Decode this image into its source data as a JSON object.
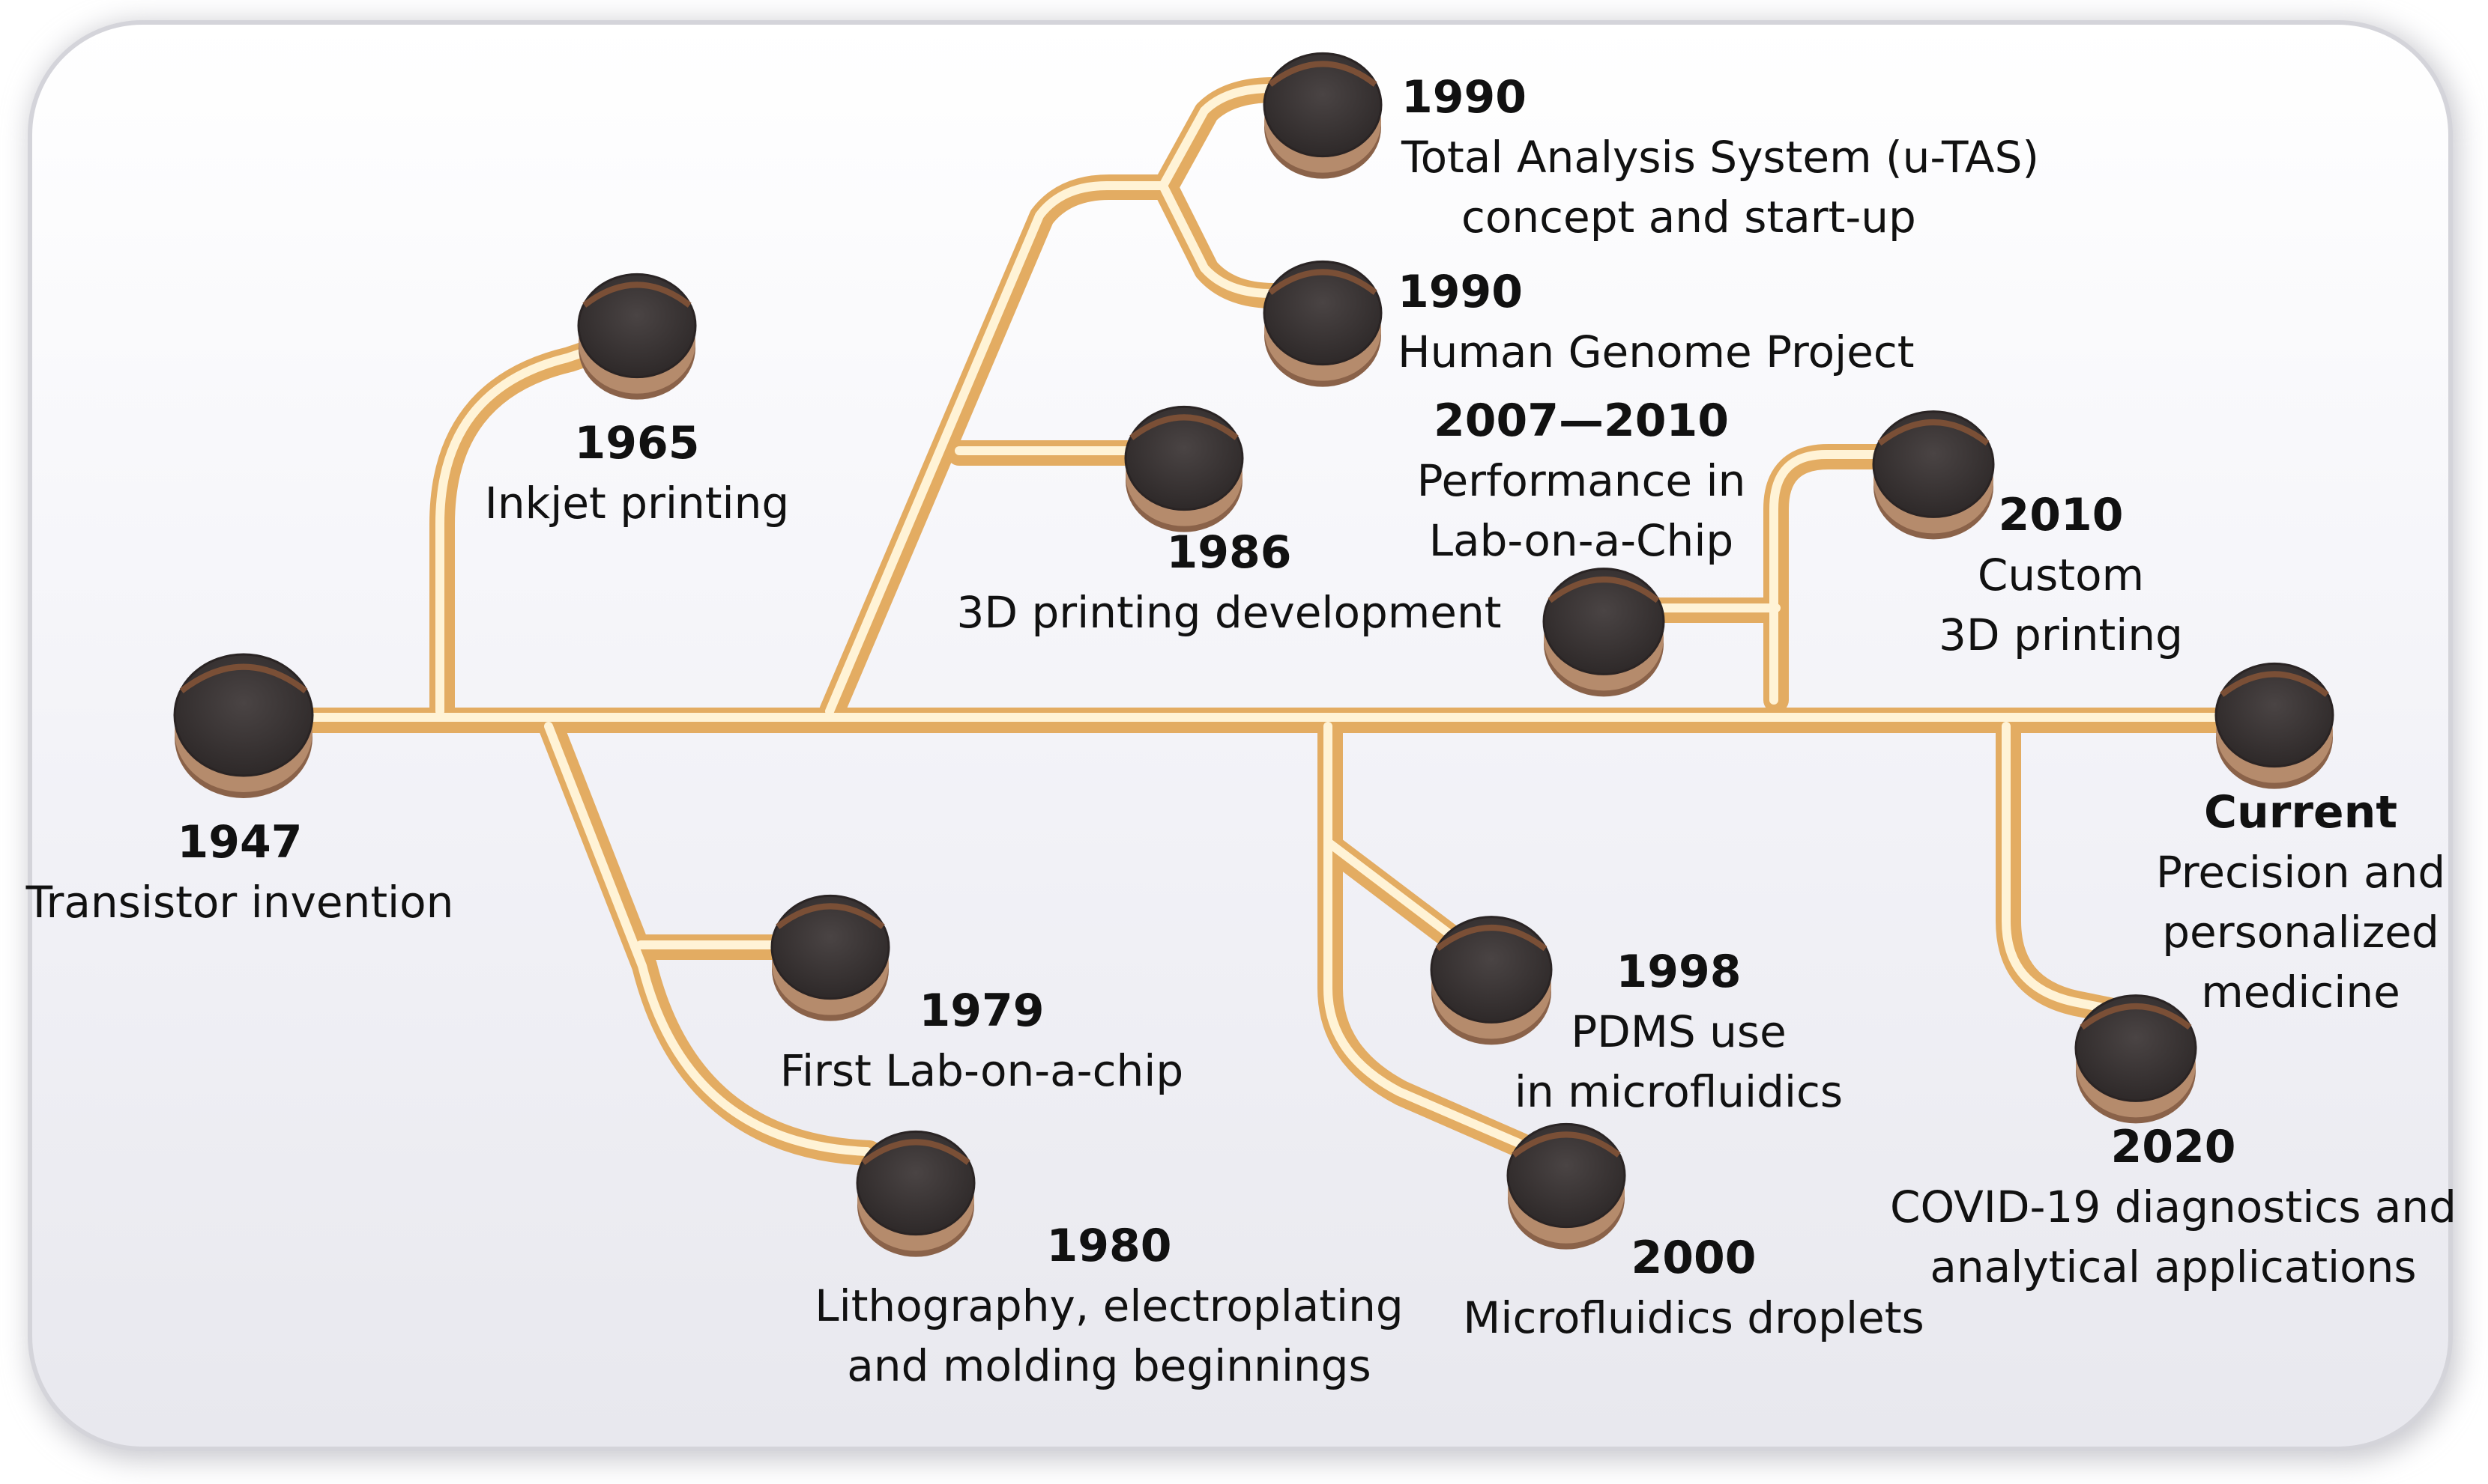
{
  "colors": {
    "channel_outer": "#e9b96e",
    "channel_inner": "#fdf3da",
    "node_top": "#3b3535",
    "node_rim": "#8b5e3c",
    "panel": "#f2f2f6"
  },
  "events": [
    {
      "id": "e1947",
      "year": "1947",
      "lines": [
        "Transistor invention"
      ]
    },
    {
      "id": "e1965",
      "year": "1965",
      "lines": [
        "Inkjet printing"
      ]
    },
    {
      "id": "e1979",
      "year": "1979",
      "lines": [
        "First  Lab-on-a-chip"
      ]
    },
    {
      "id": "e1980",
      "year": "1980",
      "lines": [
        "Lithography, electroplating",
        "and molding beginnings"
      ]
    },
    {
      "id": "e1986",
      "year": "1986",
      "lines": [
        "3D printing development"
      ]
    },
    {
      "id": "e1990a",
      "year": "1990",
      "lines": [
        "Total Analysis System (u-TAS)",
        "concept and start-up"
      ]
    },
    {
      "id": "e1990b",
      "year": "1990",
      "lines": [
        "Human Genome Project"
      ]
    },
    {
      "id": "e1998",
      "year": "1998",
      "lines": [
        "PDMS use",
        "in microfluidics"
      ]
    },
    {
      "id": "e2000",
      "year": "2000",
      "lines": [
        "Microfluidics droplets"
      ]
    },
    {
      "id": "e2007",
      "year": "2007—2010",
      "lines": [
        "Performance in",
        "Lab-on-a-Chip"
      ]
    },
    {
      "id": "e2010",
      "year": "2010",
      "lines": [
        "Custom",
        "3D  printing"
      ]
    },
    {
      "id": "e2020",
      "year": "2020",
      "lines": [
        "COVID-19 diagnostics and",
        "analytical applications"
      ]
    },
    {
      "id": "ecur",
      "year": "Current",
      "lines": [
        "Precision and",
        "personalized",
        "medicine"
      ]
    }
  ]
}
